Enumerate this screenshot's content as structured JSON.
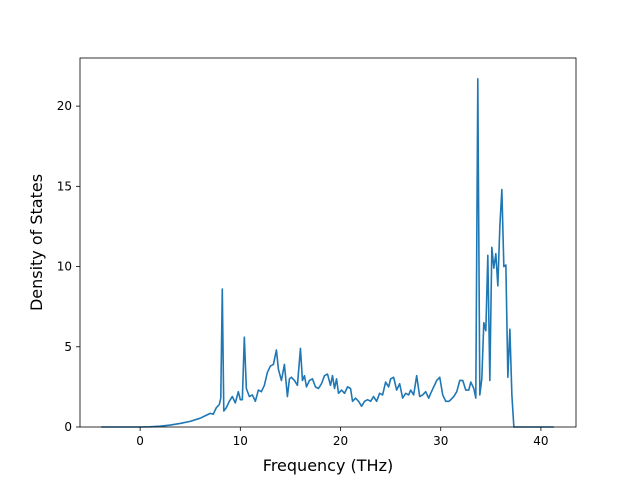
{
  "chart_data": {
    "type": "line",
    "title": "",
    "xlabel": "Frequency (THz)",
    "ylabel": "Density of States",
    "xlim": [
      -6,
      43.5
    ],
    "ylim": [
      0,
      23
    ],
    "x_ticks": [
      0,
      10,
      20,
      30,
      40
    ],
    "y_ticks": [
      0,
      5,
      10,
      15,
      20
    ],
    "x_tick_labels": [
      "0",
      "10",
      "20",
      "30",
      "40"
    ],
    "y_tick_labels": [
      "0",
      "5",
      "10",
      "15",
      "20"
    ],
    "grid": false,
    "line_color": "#1f77b4",
    "series": [
      {
        "x": [
          -3.8,
          -2.0,
          0.0,
          1.0,
          2.0,
          3.0,
          4.0,
          5.0,
          6.0,
          6.5,
          7.0,
          7.3,
          7.6,
          7.9,
          8.05,
          8.2,
          8.35,
          8.6,
          8.9,
          9.2,
          9.5,
          9.8,
          10.0,
          10.2,
          10.4,
          10.6,
          10.9,
          11.2,
          11.5,
          11.8,
          12.1,
          12.4,
          12.7,
          13.0,
          13.3,
          13.6,
          13.8,
          14.1,
          14.4,
          14.7,
          14.9,
          15.1,
          15.4,
          15.7,
          16.0,
          16.2,
          16.4,
          16.6,
          16.9,
          17.2,
          17.5,
          17.8,
          18.1,
          18.4,
          18.7,
          19.0,
          19.2,
          19.4,
          19.6,
          19.8,
          20.1,
          20.4,
          20.7,
          21.0,
          21.2,
          21.5,
          21.8,
          22.1,
          22.4,
          22.7,
          23.0,
          23.3,
          23.6,
          23.9,
          24.2,
          24.5,
          24.8,
          25.0,
          25.3,
          25.6,
          25.9,
          26.2,
          26.5,
          26.8,
          27.0,
          27.3,
          27.6,
          27.9,
          28.2,
          28.5,
          28.8,
          29.0,
          29.3,
          29.6,
          29.9,
          30.2,
          30.5,
          30.8,
          31.0,
          31.3,
          31.6,
          31.9,
          32.2,
          32.5,
          32.8,
          33.0,
          33.3,
          33.5,
          33.7,
          33.9,
          34.1,
          34.3,
          34.5,
          34.7,
          34.9,
          35.1,
          35.3,
          35.5,
          35.7,
          35.9,
          36.1,
          36.3,
          36.5,
          36.7,
          36.9,
          37.1,
          37.3,
          37.6,
          38.0,
          39.0,
          41.2
        ],
        "y": [
          0.0,
          0.0,
          0.0,
          0.01,
          0.05,
          0.12,
          0.22,
          0.35,
          0.55,
          0.7,
          0.85,
          0.8,
          1.2,
          1.4,
          1.8,
          8.6,
          1.0,
          1.2,
          1.6,
          1.9,
          1.5,
          2.2,
          1.7,
          1.7,
          5.6,
          2.4,
          1.9,
          2.0,
          1.6,
          2.3,
          2.2,
          2.6,
          3.4,
          3.8,
          3.9,
          4.8,
          3.6,
          2.9,
          3.9,
          1.9,
          3.0,
          3.1,
          2.9,
          2.6,
          4.9,
          2.9,
          3.2,
          2.5,
          2.9,
          3.0,
          2.5,
          2.4,
          2.7,
          3.2,
          3.3,
          2.6,
          3.2,
          2.4,
          3.0,
          2.1,
          2.3,
          2.1,
          2.5,
          2.4,
          1.6,
          1.8,
          1.6,
          1.3,
          1.6,
          1.7,
          1.6,
          1.9,
          1.6,
          2.1,
          2.0,
          2.8,
          2.5,
          3.0,
          3.1,
          2.3,
          2.7,
          1.8,
          2.1,
          2.0,
          2.3,
          2.0,
          3.2,
          1.9,
          2.0,
          2.2,
          1.8,
          2.1,
          2.5,
          2.9,
          3.1,
          2.0,
          1.6,
          1.6,
          1.7,
          1.9,
          2.2,
          2.9,
          2.9,
          2.3,
          2.3,
          2.8,
          2.4,
          1.8,
          21.7,
          2.0,
          3.0,
          6.5,
          6.0,
          10.7,
          2.9,
          11.2,
          9.9,
          10.8,
          8.8,
          12.5,
          14.8,
          10.0,
          10.1,
          3.1,
          6.1,
          2.0,
          0.0,
          0.0,
          0.0,
          0.0,
          0.0
        ]
      }
    ]
  }
}
